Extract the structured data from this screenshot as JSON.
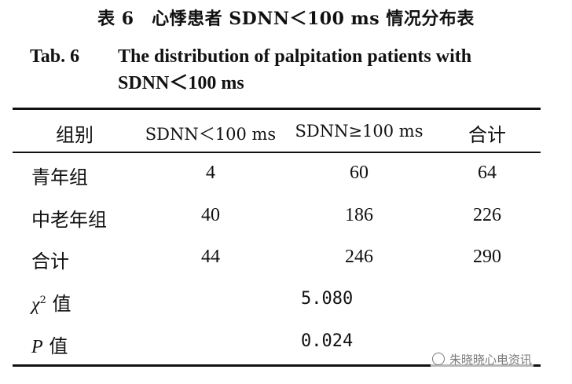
{
  "title_cn": "表 6　心悸患者 SDNN＜100 ms 情况分布表",
  "title_en_label": "Tab. 6",
  "title_en_line1": "The distribution of palpitation patients with",
  "title_en_line2": "SDNN＜100 ms",
  "table": {
    "headers": [
      "组别",
      "SDNN＜100 ms",
      "SDNN≥100 ms",
      "合计"
    ],
    "rows": [
      [
        "青年组",
        "4",
        "60",
        "64"
      ],
      [
        "中老年组",
        "40",
        "186",
        "226"
      ],
      [
        "合计",
        "44",
        "246",
        "290"
      ]
    ],
    "chi_label": "χ",
    "chi_sup": "2",
    "value_word": "值",
    "chi_value": "5.080",
    "p_label": "P",
    "p_value": "0.024"
  },
  "watermark": "朱晓晓心电资讯"
}
